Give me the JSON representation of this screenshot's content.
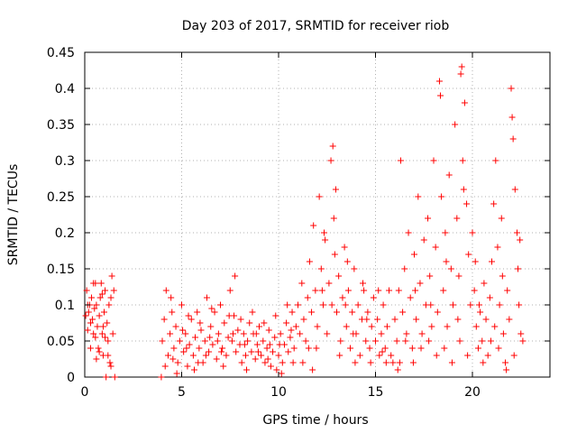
{
  "chart_data": {
    "type": "scatter",
    "title": "Day 203 of 2017, SRMTID for receiver riob",
    "xlabel": "GPS time / hours",
    "ylabel": "SRMTID / TECUs",
    "xlim": [
      0,
      24
    ],
    "ylim": [
      0,
      0.45
    ],
    "xticks": [
      0,
      5,
      10,
      15,
      20
    ],
    "yticks": [
      0,
      0.05,
      0.1,
      0.15,
      0.2,
      0.25,
      0.3,
      0.35,
      0.4,
      0.45
    ],
    "xtick_labels": [
      "0",
      "5",
      "10",
      "15",
      "20"
    ],
    "ytick_labels": [
      "0",
      "0.05",
      "0.1",
      "0.15",
      "0.2",
      "0.25",
      "0.3",
      "0.35",
      "0.4",
      "0.45"
    ],
    "grid": true,
    "marker": "+",
    "color": "#ff0000",
    "series": [
      {
        "name": "SRMTID",
        "points": [
          [
            0.05,
            0.085
          ],
          [
            0.1,
            0.12
          ],
          [
            0.15,
            0.065
          ],
          [
            0.2,
            0.09
          ],
          [
            0.25,
            0.1
          ],
          [
            0.3,
            0.075
          ],
          [
            0.35,
            0.11
          ],
          [
            0.4,
            0.08
          ],
          [
            0.45,
            0.13
          ],
          [
            0.5,
            0.095
          ],
          [
            0.55,
            0.055
          ],
          [
            0.6,
            0.1
          ],
          [
            0.65,
            0.07
          ],
          [
            0.7,
            0.04
          ],
          [
            0.75,
            0.085
          ],
          [
            0.8,
            0.11
          ],
          [
            0.85,
            0.13
          ],
          [
            0.9,
            0.06
          ],
          [
            0.95,
            0.03
          ],
          [
            1.0,
            0.09
          ],
          [
            1.05,
            0.12
          ],
          [
            1.1,
            0.0
          ],
          [
            1.15,
            0.075
          ],
          [
            1.2,
            0.05
          ],
          [
            1.25,
            0.1
          ],
          [
            1.3,
            0.02
          ],
          [
            1.35,
            0.11
          ],
          [
            1.4,
            0.14
          ],
          [
            1.45,
            0.06
          ],
          [
            1.5,
            0.12
          ],
          [
            1.55,
            0.0
          ],
          [
            0.3,
            0.04
          ],
          [
            0.6,
            0.025
          ],
          [
            0.9,
            0.115
          ],
          [
            1.2,
            0.03
          ],
          [
            0.15,
            0.1
          ],
          [
            0.45,
            0.06
          ],
          [
            0.75,
            0.035
          ],
          [
            1.05,
            0.055
          ],
          [
            1.35,
            0.015
          ],
          [
            0.55,
            0.13
          ],
          [
            0.95,
            0.07
          ],
          [
            3.95,
            0.0
          ],
          [
            4.0,
            0.05
          ],
          [
            4.1,
            0.08
          ],
          [
            4.2,
            0.12
          ],
          [
            4.3,
            0.03
          ],
          [
            4.4,
            0.06
          ],
          [
            4.5,
            0.09
          ],
          [
            4.6,
            0.04
          ],
          [
            4.7,
            0.07
          ],
          [
            4.8,
            0.02
          ],
          [
            4.9,
            0.05
          ],
          [
            5.0,
            0.1
          ],
          [
            5.1,
            0.035
          ],
          [
            5.2,
            0.06
          ],
          [
            5.3,
            0.015
          ],
          [
            5.4,
            0.045
          ],
          [
            5.5,
            0.08
          ],
          [
            5.6,
            0.03
          ],
          [
            5.7,
            0.055
          ],
          [
            5.8,
            0.09
          ],
          [
            5.9,
            0.04
          ],
          [
            6.0,
            0.065
          ],
          [
            6.1,
            0.02
          ],
          [
            6.2,
            0.05
          ],
          [
            6.3,
            0.11
          ],
          [
            6.4,
            0.035
          ],
          [
            6.5,
            0.07
          ],
          [
            6.6,
            0.045
          ],
          [
            6.7,
            0.09
          ],
          [
            6.8,
            0.025
          ],
          [
            6.9,
            0.06
          ],
          [
            7.0,
            0.1
          ],
          [
            7.1,
            0.04
          ],
          [
            7.2,
            0.075
          ],
          [
            7.3,
            0.03
          ],
          [
            7.4,
            0.055
          ],
          [
            7.5,
            0.12
          ],
          [
            7.6,
            0.05
          ],
          [
            7.7,
            0.085
          ],
          [
            7.8,
            0.035
          ],
          [
            7.9,
            0.065
          ],
          [
            8.0,
            0.045
          ],
          [
            8.1,
            0.02
          ],
          [
            8.2,
            0.06
          ],
          [
            8.3,
            0.03
          ],
          [
            8.4,
            0.05
          ],
          [
            8.5,
            0.075
          ],
          [
            8.6,
            0.035
          ],
          [
            8.7,
            0.06
          ],
          [
            8.8,
            0.025
          ],
          [
            8.9,
            0.045
          ],
          [
            9.0,
            0.07
          ],
          [
            9.1,
            0.03
          ],
          [
            9.2,
            0.05
          ],
          [
            9.3,
            0.02
          ],
          [
            9.4,
            0.04
          ],
          [
            9.5,
            0.065
          ],
          [
            9.6,
            0.015
          ],
          [
            9.7,
            0.035
          ],
          [
            9.8,
            0.055
          ],
          [
            9.9,
            0.01
          ],
          [
            10.0,
            0.03
          ],
          [
            10.1,
            0.06
          ],
          [
            10.2,
            0.02
          ],
          [
            10.3,
            0.045
          ],
          [
            10.4,
            0.075
          ],
          [
            10.5,
            0.035
          ],
          [
            10.6,
            0.055
          ],
          [
            10.7,
            0.09
          ],
          [
            10.8,
            0.04
          ],
          [
            10.9,
            0.07
          ],
          [
            4.15,
            0.015
          ],
          [
            4.45,
            0.11
          ],
          [
            4.75,
            0.005
          ],
          [
            5.05,
            0.065
          ],
          [
            5.35,
            0.085
          ],
          [
            5.65,
            0.01
          ],
          [
            5.95,
            0.075
          ],
          [
            6.25,
            0.03
          ],
          [
            6.55,
            0.095
          ],
          [
            6.85,
            0.05
          ],
          [
            7.15,
            0.015
          ],
          [
            7.45,
            0.085
          ],
          [
            7.75,
            0.14
          ],
          [
            8.05,
            0.08
          ],
          [
            8.35,
            0.01
          ],
          [
            8.65,
            0.09
          ],
          [
            8.95,
            0.035
          ],
          [
            9.25,
            0.075
          ],
          [
            9.55,
            0.045
          ],
          [
            9.85,
            0.085
          ],
          [
            10.15,
            0.005
          ],
          [
            10.45,
            0.1
          ],
          [
            10.75,
            0.02
          ],
          [
            4.55,
            0.025
          ],
          [
            5.25,
            0.04
          ],
          [
            5.85,
            0.02
          ],
          [
            6.45,
            0.055
          ],
          [
            7.05,
            0.035
          ],
          [
            7.65,
            0.06
          ],
          [
            8.25,
            0.045
          ],
          [
            8.85,
            0.06
          ],
          [
            9.45,
            0.025
          ],
          [
            10.05,
            0.045
          ],
          [
            10.65,
            0.065
          ],
          [
            11.0,
            0.1
          ],
          [
            11.1,
            0.06
          ],
          [
            11.2,
            0.13
          ],
          [
            11.3,
            0.08
          ],
          [
            11.4,
            0.05
          ],
          [
            11.5,
            0.11
          ],
          [
            11.6,
            0.16
          ],
          [
            11.7,
            0.09
          ],
          [
            11.8,
            0.21
          ],
          [
            11.9,
            0.12
          ],
          [
            12.0,
            0.07
          ],
          [
            12.1,
            0.25
          ],
          [
            12.2,
            0.15
          ],
          [
            12.3,
            0.1
          ],
          [
            12.4,
            0.19
          ],
          [
            12.5,
            0.06
          ],
          [
            12.6,
            0.13
          ],
          [
            12.7,
            0.3
          ],
          [
            12.8,
            0.32
          ],
          [
            12.85,
            0.22
          ],
          [
            12.9,
            0.17
          ],
          [
            13.0,
            0.09
          ],
          [
            13.1,
            0.14
          ],
          [
            13.2,
            0.05
          ],
          [
            13.3,
            0.11
          ],
          [
            13.4,
            0.18
          ],
          [
            13.5,
            0.07
          ],
          [
            13.6,
            0.12
          ],
          [
            13.7,
            0.04
          ],
          [
            13.8,
            0.09
          ],
          [
            13.9,
            0.15
          ],
          [
            14.0,
            0.06
          ],
          [
            14.1,
            0.1
          ],
          [
            14.2,
            0.03
          ],
          [
            14.3,
            0.08
          ],
          [
            14.4,
            0.12
          ],
          [
            14.5,
            0.05
          ],
          [
            14.6,
            0.09
          ],
          [
            14.7,
            0.04
          ],
          [
            14.8,
            0.07
          ],
          [
            14.9,
            0.11
          ],
          [
            15.0,
            0.05
          ],
          [
            15.1,
            0.08
          ],
          [
            15.2,
            0.03
          ],
          [
            15.3,
            0.06
          ],
          [
            15.4,
            0.1
          ],
          [
            15.5,
            0.04
          ],
          [
            15.6,
            0.07
          ],
          [
            15.7,
            0.12
          ],
          [
            15.8,
            0.03
          ],
          [
            15.9,
            0.02
          ],
          [
            11.25,
            0.02
          ],
          [
            11.55,
            0.04
          ],
          [
            11.95,
            0.04
          ],
          [
            12.35,
            0.2
          ],
          [
            12.75,
            0.1
          ],
          [
            13.15,
            0.03
          ],
          [
            13.55,
            0.16
          ],
          [
            13.95,
            0.02
          ],
          [
            14.35,
            0.13
          ],
          [
            14.75,
            0.02
          ],
          [
            15.15,
            0.12
          ],
          [
            15.55,
            0.02
          ],
          [
            11.75,
            0.01
          ],
          [
            12.25,
            0.12
          ],
          [
            12.95,
            0.26
          ],
          [
            13.45,
            0.1
          ],
          [
            13.85,
            0.06
          ],
          [
            14.55,
            0.08
          ],
          [
            15.35,
            0.035
          ],
          [
            16.0,
            0.08
          ],
          [
            16.1,
            0.05
          ],
          [
            16.2,
            0.12
          ],
          [
            16.3,
            0.3
          ],
          [
            16.4,
            0.09
          ],
          [
            16.5,
            0.15
          ],
          [
            16.6,
            0.06
          ],
          [
            16.7,
            0.2
          ],
          [
            16.8,
            0.11
          ],
          [
            16.9,
            0.04
          ],
          [
            17.0,
            0.17
          ],
          [
            17.1,
            0.08
          ],
          [
            17.2,
            0.25
          ],
          [
            17.3,
            0.13
          ],
          [
            17.4,
            0.06
          ],
          [
            17.5,
            0.19
          ],
          [
            17.6,
            0.1
          ],
          [
            17.7,
            0.22
          ],
          [
            17.8,
            0.14
          ],
          [
            17.9,
            0.07
          ],
          [
            18.0,
            0.3
          ],
          [
            18.1,
            0.18
          ],
          [
            18.2,
            0.09
          ],
          [
            18.3,
            0.41
          ],
          [
            18.35,
            0.39
          ],
          [
            18.4,
            0.25
          ],
          [
            18.5,
            0.12
          ],
          [
            18.6,
            0.2
          ],
          [
            18.7,
            0.07
          ],
          [
            18.8,
            0.28
          ],
          [
            18.9,
            0.15
          ],
          [
            19.0,
            0.1
          ],
          [
            19.1,
            0.35
          ],
          [
            19.2,
            0.22
          ],
          [
            19.3,
            0.14
          ],
          [
            19.4,
            0.42
          ],
          [
            19.45,
            0.43
          ],
          [
            19.5,
            0.3
          ],
          [
            19.6,
            0.38
          ],
          [
            19.7,
            0.24
          ],
          [
            19.8,
            0.17
          ],
          [
            19.9,
            0.1
          ],
          [
            20.0,
            0.2
          ],
          [
            20.1,
            0.12
          ],
          [
            20.2,
            0.07
          ],
          [
            20.3,
            0.04
          ],
          [
            20.4,
            0.09
          ],
          [
            20.5,
            0.05
          ],
          [
            20.6,
            0.13
          ],
          [
            20.7,
            0.08
          ],
          [
            20.8,
            0.03
          ],
          [
            20.9,
            0.11
          ],
          [
            21.0,
            0.16
          ],
          [
            21.1,
            0.24
          ],
          [
            21.2,
            0.3
          ],
          [
            21.3,
            0.18
          ],
          [
            21.4,
            0.1
          ],
          [
            21.5,
            0.22
          ],
          [
            21.6,
            0.06
          ],
          [
            21.7,
            0.02
          ],
          [
            21.8,
            0.12
          ],
          [
            21.9,
            0.08
          ],
          [
            22.0,
            0.4
          ],
          [
            22.05,
            0.36
          ],
          [
            22.1,
            0.33
          ],
          [
            22.2,
            0.26
          ],
          [
            22.3,
            0.2
          ],
          [
            22.35,
            0.15
          ],
          [
            22.4,
            0.1
          ],
          [
            22.5,
            0.06
          ],
          [
            22.6,
            0.05
          ],
          [
            16.15,
            0.01
          ],
          [
            16.55,
            0.05
          ],
          [
            16.95,
            0.02
          ],
          [
            17.35,
            0.04
          ],
          [
            17.75,
            0.05
          ],
          [
            18.15,
            0.03
          ],
          [
            18.55,
            0.04
          ],
          [
            18.95,
            0.02
          ],
          [
            19.35,
            0.05
          ],
          [
            19.75,
            0.03
          ],
          [
            20.15,
            0.16
          ],
          [
            20.55,
            0.02
          ],
          [
            20.95,
            0.05
          ],
          [
            21.35,
            0.04
          ],
          [
            21.75,
            0.01
          ],
          [
            22.15,
            0.03
          ],
          [
            16.25,
            0.02
          ],
          [
            17.05,
            0.12
          ],
          [
            17.85,
            0.1
          ],
          [
            18.65,
            0.16
          ],
          [
            19.25,
            0.08
          ],
          [
            19.55,
            0.26
          ],
          [
            20.35,
            0.1
          ],
          [
            21.15,
            0.07
          ],
          [
            21.55,
            0.14
          ],
          [
            22.45,
            0.19
          ]
        ]
      }
    ]
  }
}
